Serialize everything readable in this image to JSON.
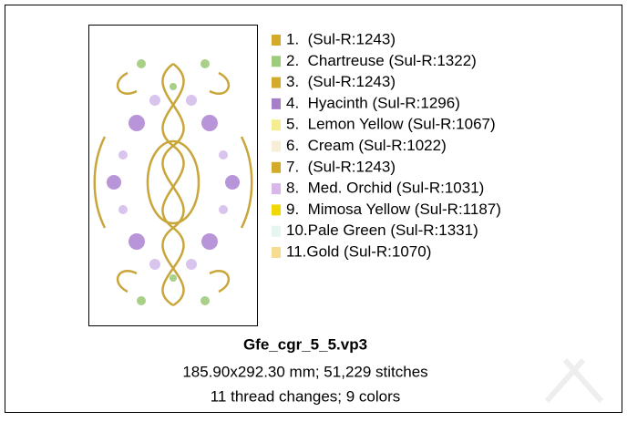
{
  "colors": [
    {
      "label": "1.  (Sul-R:1243)",
      "color": "#d4aa2a"
    },
    {
      "label": "2.  Chartreuse (Sul-R:1322)",
      "color": "#9ccc7a"
    },
    {
      "label": "3.  (Sul-R:1243)",
      "color": "#d4aa2a"
    },
    {
      "label": "4.  Hyacinth (Sul-R:1296)",
      "color": "#a57fc8"
    },
    {
      "label": "5.  Lemon Yellow (Sul-R:1067)",
      "color": "#f5ee90"
    },
    {
      "label": "6.  Cream (Sul-R:1022)",
      "color": "#f6eed6"
    },
    {
      "label": "7.  (Sul-R:1243)",
      "color": "#d4aa2a"
    },
    {
      "label": "8.  Med. Orchid (Sul-R:1031)",
      "color": "#d8b8e8"
    },
    {
      "label": "9.  Mimosa Yellow (Sul-R:1187)",
      "color": "#f0d800"
    },
    {
      "label": "10.Pale Green (Sul-R:1331)",
      "color": "#e4f6ee"
    },
    {
      "label": "11.Gold (Sul-R:1070)",
      "color": "#f5dc90"
    }
  ],
  "file_name": "Gfe_cgr_5_5.vp3",
  "size_line": "185.90x292.30 mm; 51,229 stitches",
  "changes_line": "11 thread changes; 9 colors"
}
